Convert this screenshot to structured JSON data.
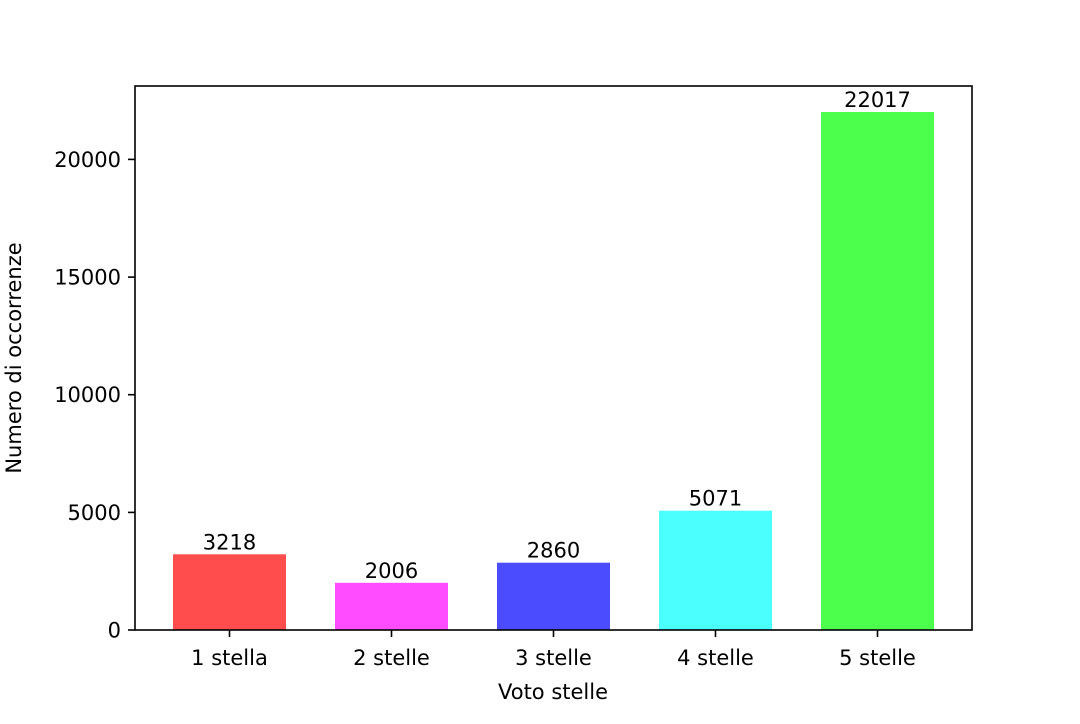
{
  "chart_data": {
    "type": "bar",
    "categories": [
      "1 stella",
      "2 stelle",
      "3 stelle",
      "4 stelle",
      "5 stelle"
    ],
    "values": [
      3218,
      2006,
      2860,
      5071,
      22017
    ],
    "data_labels": [
      "3218",
      "2006",
      "2860",
      "5071",
      "22017"
    ],
    "bar_colors": [
      "#ff4c4c",
      "#ff4cff",
      "#4c4cff",
      "#4cffff",
      "#4cff4c"
    ],
    "xlabel": "Voto stelle",
    "ylabel": "Numero di occorrenze",
    "ylim": [
      0,
      23120
    ],
    "yticks": [
      0,
      5000,
      10000,
      15000,
      20000
    ],
    "ytick_labels": [
      "0",
      "5000",
      "10000",
      "15000",
      "20000"
    ],
    "grid": false,
    "legend": false
  }
}
